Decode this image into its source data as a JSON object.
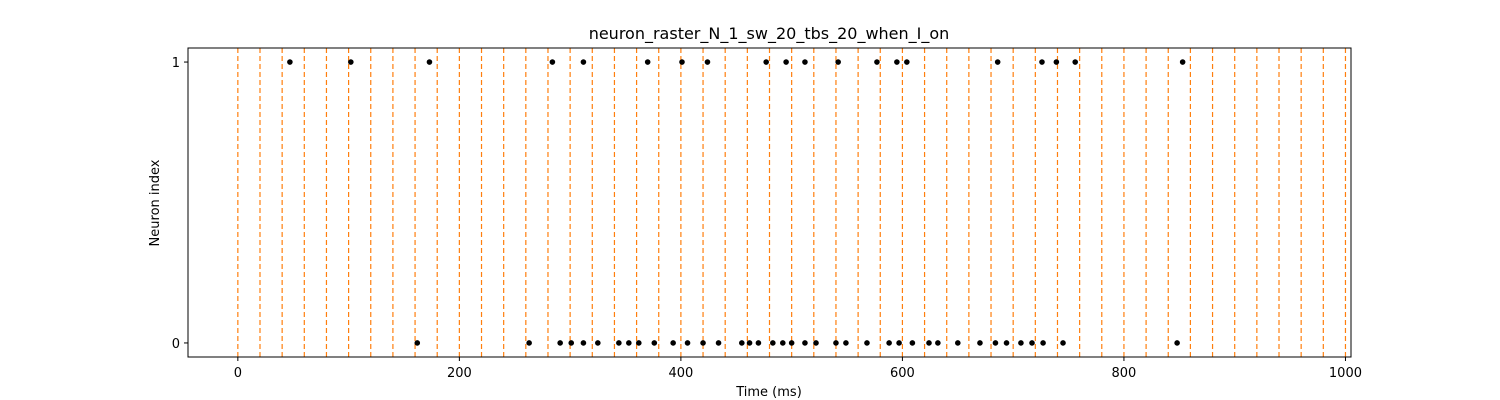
{
  "chart_data": {
    "type": "scatter",
    "title": "neuron_raster_N_1_sw_20_tbs_20_when_I_on",
    "xlabel": "Time (ms)",
    "ylabel": "Neuron index",
    "xlim": [
      -45,
      1005
    ],
    "ylim": [
      -0.05,
      1.05
    ],
    "xticks": [
      0,
      200,
      400,
      600,
      800,
      1000
    ],
    "yticks": [
      0,
      1
    ],
    "marker_color": "#000000",
    "vline_color": "#ff7f0e",
    "vlines": [
      0,
      20,
      40,
      60,
      80,
      100,
      120,
      140,
      160,
      180,
      200,
      220,
      240,
      260,
      280,
      300,
      320,
      340,
      360,
      380,
      400,
      420,
      440,
      460,
      480,
      500,
      520,
      540,
      560,
      580,
      600,
      620,
      640,
      660,
      680,
      700,
      720,
      740,
      760,
      780,
      800,
      820,
      840,
      860,
      880,
      900,
      920,
      940,
      960,
      980,
      1000
    ],
    "series": [
      {
        "neuron": 1,
        "x": [
          47,
          102,
          173,
          284,
          312,
          370,
          401,
          424,
          477,
          495,
          512,
          542,
          577,
          595,
          604,
          686,
          726,
          739,
          756,
          853
        ]
      },
      {
        "neuron": 0,
        "x": [
          162,
          263,
          291,
          301,
          312,
          325,
          344,
          353,
          362,
          376,
          393,
          406,
          420,
          434,
          455,
          462,
          470,
          483,
          492,
          500,
          512,
          522,
          540,
          549,
          568,
          588,
          597,
          609,
          624,
          632,
          650,
          670,
          684,
          694,
          707,
          717,
          727,
          745,
          848
        ]
      }
    ]
  }
}
